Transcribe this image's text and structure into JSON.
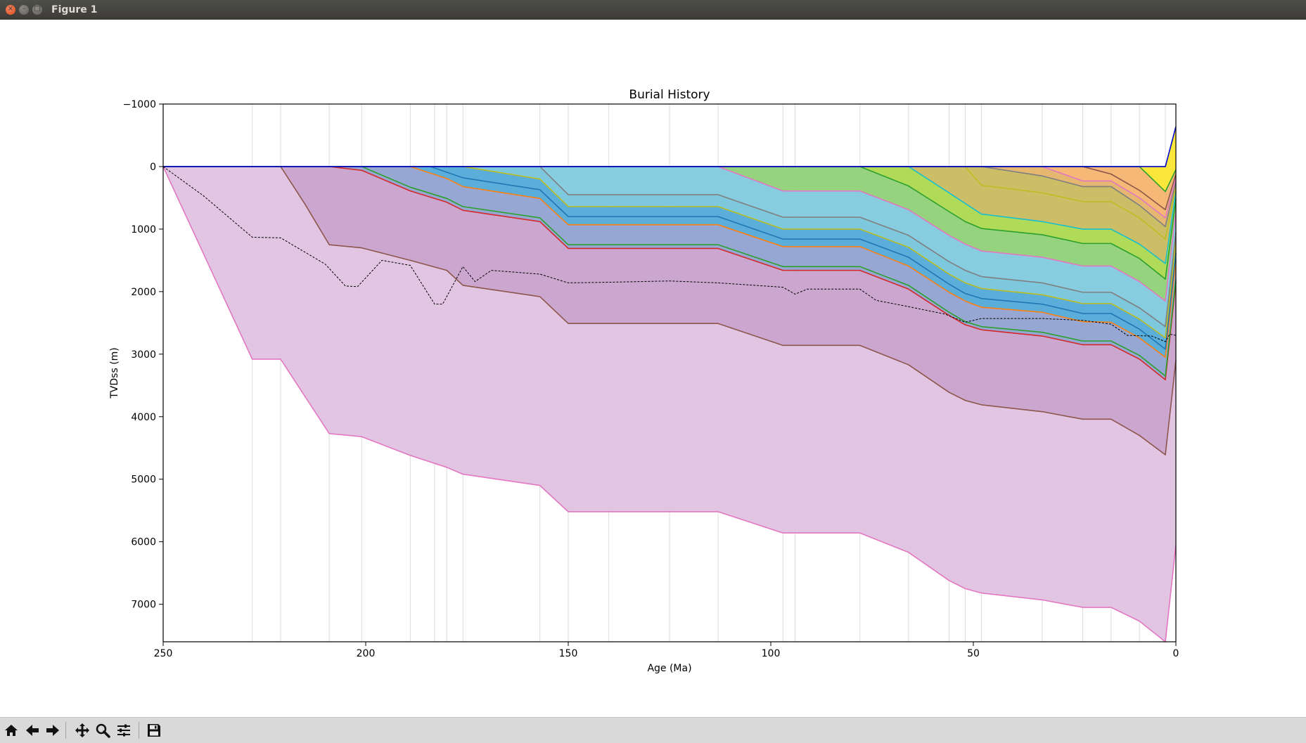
{
  "window": {
    "title": "Figure 1"
  },
  "toolbar": {
    "icons": [
      "home-icon",
      "back-arrow-icon",
      "forward-arrow-icon",
      "pan-icon",
      "zoom-icon",
      "configure-subplots-icon",
      "save-icon"
    ]
  },
  "colors": {
    "basement_fill": "#dfc0df",
    "basement_line": "#e377c2",
    "deep_fill": "#c7a0cc",
    "brown_line": "#8c564b",
    "red_line": "#d62728",
    "purple_fill": "#8e9fcf",
    "green_line": "#2ca02c",
    "orange_line": "#ff7f0e",
    "blue_fill": "#4ca7d6",
    "blue_line": "#1f77b4",
    "cyan_fill": "#7ec8dd",
    "gray_line": "#7f7f7f",
    "olive_line": "#bcbd22",
    "cyan_line": "#17becf",
    "green_fill": "#8dcf74",
    "lime_fill": "#a8d84a",
    "khaki_fill": "#c8b85a",
    "tan_fill": "#e3b165",
    "orange_fill": "#f4b26a",
    "yellow_fill": "#fbe52a",
    "surface_line": "#0000cc"
  },
  "chart_data": {
    "type": "area",
    "title": "Burial History",
    "xlabel": "Age (Ma)",
    "ylabel": "TVDss (m)",
    "xlim": [
      250,
      0
    ],
    "ylim": [
      7600,
      -1000
    ],
    "yaxis_inverted": true,
    "xticks": [
      "250",
      "200",
      "150",
      "100",
      "50",
      "0"
    ],
    "yticks": [
      "−1000",
      "0",
      "1000",
      "2000",
      "3000",
      "4000",
      "5000",
      "6000",
      "7000"
    ],
    "vertical_gridlines_at_ages": [
      228,
      221,
      209,
      201,
      189,
      183,
      180,
      176,
      157,
      150,
      140,
      125,
      113,
      97,
      94,
      78,
      66,
      56,
      52,
      48,
      33,
      23,
      16,
      9,
      2.6
    ],
    "horizons": [
      {
        "color": "#e377c2",
        "fill": "#dfc0df",
        "points": [
          [
            250,
            0
          ],
          [
            228,
            3080
          ],
          [
            221,
            3080
          ],
          [
            209,
            4270
          ],
          [
            201,
            4320
          ],
          [
            189,
            4620
          ],
          [
            180,
            4810
          ],
          [
            176,
            4920
          ],
          [
            157,
            5100
          ],
          [
            150,
            5520
          ],
          [
            113,
            5520
          ],
          [
            97,
            5860
          ],
          [
            78,
            5860
          ],
          [
            66,
            6170
          ],
          [
            56,
            6620
          ],
          [
            52,
            6750
          ],
          [
            48,
            6820
          ],
          [
            33,
            6930
          ],
          [
            23,
            7050
          ],
          [
            16,
            7050
          ],
          [
            9,
            7270
          ],
          [
            2.6,
            7600
          ],
          [
            0,
            6050
          ]
        ]
      },
      {
        "color": "#8c564b",
        "fill": "#c7a0cc",
        "points": [
          [
            250,
            0
          ],
          [
            221,
            0
          ],
          [
            215,
            600
          ],
          [
            209,
            1250
          ],
          [
            201,
            1300
          ],
          [
            189,
            1500
          ],
          [
            180,
            1660
          ],
          [
            176,
            1900
          ],
          [
            157,
            2080
          ],
          [
            150,
            2510
          ],
          [
            113,
            2510
          ],
          [
            97,
            2860
          ],
          [
            78,
            2860
          ],
          [
            66,
            3170
          ],
          [
            56,
            3610
          ],
          [
            52,
            3740
          ],
          [
            48,
            3810
          ],
          [
            33,
            3920
          ],
          [
            23,
            4040
          ],
          [
            16,
            4040
          ],
          [
            9,
            4300
          ],
          [
            2.6,
            4610
          ],
          [
            0,
            3100
          ]
        ]
      },
      {
        "color": "#d62728",
        "fill": "#8e9fcf",
        "points": [
          [
            250,
            0
          ],
          [
            209,
            0
          ],
          [
            201,
            60
          ],
          [
            189,
            390
          ],
          [
            180,
            570
          ],
          [
            176,
            700
          ],
          [
            157,
            880
          ],
          [
            150,
            1310
          ],
          [
            113,
            1310
          ],
          [
            97,
            1660
          ],
          [
            78,
            1660
          ],
          [
            66,
            1960
          ],
          [
            56,
            2380
          ],
          [
            52,
            2530
          ],
          [
            48,
            2610
          ],
          [
            33,
            2710
          ],
          [
            23,
            2850
          ],
          [
            16,
            2850
          ],
          [
            9,
            3080
          ],
          [
            2.6,
            3410
          ],
          [
            0,
            1850
          ]
        ]
      },
      {
        "color": "#2ca02c",
        "fill": "#8e9fcf",
        "points": [
          [
            250,
            0
          ],
          [
            201,
            0
          ],
          [
            189,
            330
          ],
          [
            180,
            510
          ],
          [
            176,
            640
          ],
          [
            157,
            820
          ],
          [
            150,
            1250
          ],
          [
            113,
            1250
          ],
          [
            97,
            1600
          ],
          [
            78,
            1600
          ],
          [
            66,
            1900
          ],
          [
            56,
            2330
          ],
          [
            52,
            2480
          ],
          [
            48,
            2560
          ],
          [
            33,
            2650
          ],
          [
            23,
            2790
          ],
          [
            16,
            2790
          ],
          [
            9,
            3020
          ],
          [
            2.6,
            3350
          ],
          [
            0,
            1800
          ]
        ]
      },
      {
        "color": "#ff7f0e",
        "fill": "#4ca7d6",
        "points": [
          [
            250,
            0
          ],
          [
            189,
            0
          ],
          [
            180,
            190
          ],
          [
            176,
            320
          ],
          [
            157,
            510
          ],
          [
            150,
            930
          ],
          [
            113,
            930
          ],
          [
            97,
            1280
          ],
          [
            78,
            1280
          ],
          [
            66,
            1590
          ],
          [
            56,
            2010
          ],
          [
            52,
            2150
          ],
          [
            48,
            2250
          ],
          [
            33,
            2330
          ],
          [
            23,
            2480
          ],
          [
            16,
            2490
          ],
          [
            9,
            2740
          ],
          [
            2.6,
            3050
          ],
          [
            0,
            1500
          ]
        ]
      },
      {
        "color": "#1f77b4",
        "fill": "#4ca7d6",
        "points": [
          [
            250,
            0
          ],
          [
            184,
            0
          ],
          [
            180,
            90
          ],
          [
            176,
            180
          ],
          [
            157,
            370
          ],
          [
            150,
            800
          ],
          [
            113,
            800
          ],
          [
            97,
            1160
          ],
          [
            78,
            1160
          ],
          [
            66,
            1450
          ],
          [
            56,
            1880
          ],
          [
            52,
            2030
          ],
          [
            48,
            2110
          ],
          [
            33,
            2200
          ],
          [
            23,
            2350
          ],
          [
            16,
            2350
          ],
          [
            9,
            2600
          ],
          [
            2.6,
            2920
          ],
          [
            0,
            1380
          ]
        ]
      },
      {
        "color": "#7f7f7f",
        "fill": "#7ec8dd",
        "points": [
          [
            250,
            0
          ],
          [
            157,
            0
          ],
          [
            150,
            450
          ],
          [
            113,
            450
          ],
          [
            97,
            810
          ],
          [
            78,
            810
          ],
          [
            66,
            1100
          ],
          [
            56,
            1520
          ],
          [
            52,
            1660
          ],
          [
            48,
            1760
          ],
          [
            33,
            1860
          ],
          [
            23,
            2010
          ],
          [
            16,
            2010
          ],
          [
            9,
            2260
          ],
          [
            2.6,
            2560
          ],
          [
            0,
            1050
          ]
        ]
      },
      {
        "color": "#bcbd22",
        "fill": "#7ec8dd",
        "points": [
          [
            250,
            0
          ],
          [
            176,
            0
          ],
          [
            157,
            200
          ],
          [
            150,
            640
          ],
          [
            113,
            640
          ],
          [
            97,
            1000
          ],
          [
            78,
            1000
          ],
          [
            66,
            1290
          ],
          [
            56,
            1720
          ],
          [
            52,
            1860
          ],
          [
            48,
            1950
          ],
          [
            33,
            2050
          ],
          [
            23,
            2190
          ],
          [
            16,
            2190
          ],
          [
            9,
            2440
          ],
          [
            2.6,
            2740
          ],
          [
            0,
            1200
          ]
        ]
      },
      {
        "color": "#e377c2",
        "fill": "#8dcf74",
        "points": [
          [
            250,
            0
          ],
          [
            113,
            0
          ],
          [
            97,
            390
          ],
          [
            78,
            390
          ],
          [
            66,
            690
          ],
          [
            56,
            1100
          ],
          [
            52,
            1240
          ],
          [
            48,
            1350
          ],
          [
            33,
            1450
          ],
          [
            23,
            1590
          ],
          [
            16,
            1590
          ],
          [
            9,
            1840
          ],
          [
            2.6,
            2150
          ],
          [
            0,
            720
          ]
        ]
      },
      {
        "color": "#2ca02c",
        "fill": "#a8d84a",
        "points": [
          [
            250,
            0
          ],
          [
            78,
            0
          ],
          [
            66,
            310
          ],
          [
            56,
            720
          ],
          [
            52,
            880
          ],
          [
            48,
            990
          ],
          [
            33,
            1090
          ],
          [
            23,
            1230
          ],
          [
            16,
            1230
          ],
          [
            9,
            1470
          ],
          [
            2.6,
            1800
          ],
          [
            0,
            520
          ]
        ]
      },
      {
        "color": "#17becf",
        "fill": "#c8b85a",
        "points": [
          [
            250,
            0
          ],
          [
            66,
            0
          ],
          [
            56,
            420
          ],
          [
            52,
            590
          ],
          [
            48,
            760
          ],
          [
            33,
            880
          ],
          [
            23,
            1000
          ],
          [
            16,
            1000
          ],
          [
            9,
            1240
          ],
          [
            2.6,
            1550
          ],
          [
            0,
            400
          ]
        ]
      },
      {
        "color": "#bcbd22",
        "fill": "#c8b85a",
        "points": [
          [
            250,
            0
          ],
          [
            52,
            0
          ],
          [
            48,
            300
          ],
          [
            33,
            420
          ],
          [
            23,
            560
          ],
          [
            16,
            560
          ],
          [
            9,
            820
          ],
          [
            2.6,
            1160
          ],
          [
            0,
            320
          ]
        ]
      },
      {
        "color": "#7f7f7f",
        "fill": "#e3b165",
        "points": [
          [
            250,
            0
          ],
          [
            48,
            0
          ],
          [
            33,
            150
          ],
          [
            23,
            320
          ],
          [
            16,
            320
          ],
          [
            9,
            620
          ],
          [
            2.6,
            960
          ],
          [
            0,
            240
          ]
        ]
      },
      {
        "color": "#e377c2",
        "fill": "#f4b26a",
        "points": [
          [
            250,
            0
          ],
          [
            33,
            0
          ],
          [
            23,
            230
          ],
          [
            16,
            230
          ],
          [
            9,
            500
          ],
          [
            2.6,
            820
          ],
          [
            0,
            180
          ]
        ]
      },
      {
        "color": "#8c564b",
        "fill": "#f4b26a",
        "points": [
          [
            250,
            0
          ],
          [
            23,
            0
          ],
          [
            16,
            120
          ],
          [
            9,
            380
          ],
          [
            2.6,
            690
          ],
          [
            0,
            120
          ]
        ]
      },
      {
        "color": "#2ca02c",
        "fill": "#fbe52a",
        "points": [
          [
            250,
            0
          ],
          [
            9,
            0
          ],
          [
            2.6,
            400
          ],
          [
            0,
            50
          ]
        ]
      },
      {
        "color": "#0000cc",
        "fill": "none",
        "points": [
          [
            250,
            0
          ],
          [
            2.6,
            0
          ],
          [
            0,
            -640
          ]
        ]
      }
    ],
    "dashed_line": {
      "color": "#000000",
      "points": [
        [
          250,
          0
        ],
        [
          240,
          470
        ],
        [
          228,
          1130
        ],
        [
          221,
          1140
        ],
        [
          210,
          1560
        ],
        [
          205,
          1910
        ],
        [
          202,
          1920
        ],
        [
          196,
          1500
        ],
        [
          189,
          1580
        ],
        [
          183,
          2200
        ],
        [
          181,
          2200
        ],
        [
          176,
          1600
        ],
        [
          173,
          1840
        ],
        [
          169,
          1660
        ],
        [
          157,
          1720
        ],
        [
          150,
          1860
        ],
        [
          140,
          1850
        ],
        [
          125,
          1830
        ],
        [
          113,
          1860
        ],
        [
          97,
          1930
        ],
        [
          94,
          2040
        ],
        [
          91,
          1960
        ],
        [
          78,
          1960
        ],
        [
          74,
          2140
        ],
        [
          66,
          2240
        ],
        [
          57,
          2360
        ],
        [
          52,
          2490
        ],
        [
          48,
          2430
        ],
        [
          40,
          2430
        ],
        [
          33,
          2430
        ],
        [
          23,
          2460
        ],
        [
          16,
          2520
        ],
        [
          12,
          2700
        ],
        [
          6,
          2710
        ],
        [
          2.6,
          2800
        ],
        [
          1.5,
          2680
        ],
        [
          0,
          2700
        ]
      ]
    }
  }
}
